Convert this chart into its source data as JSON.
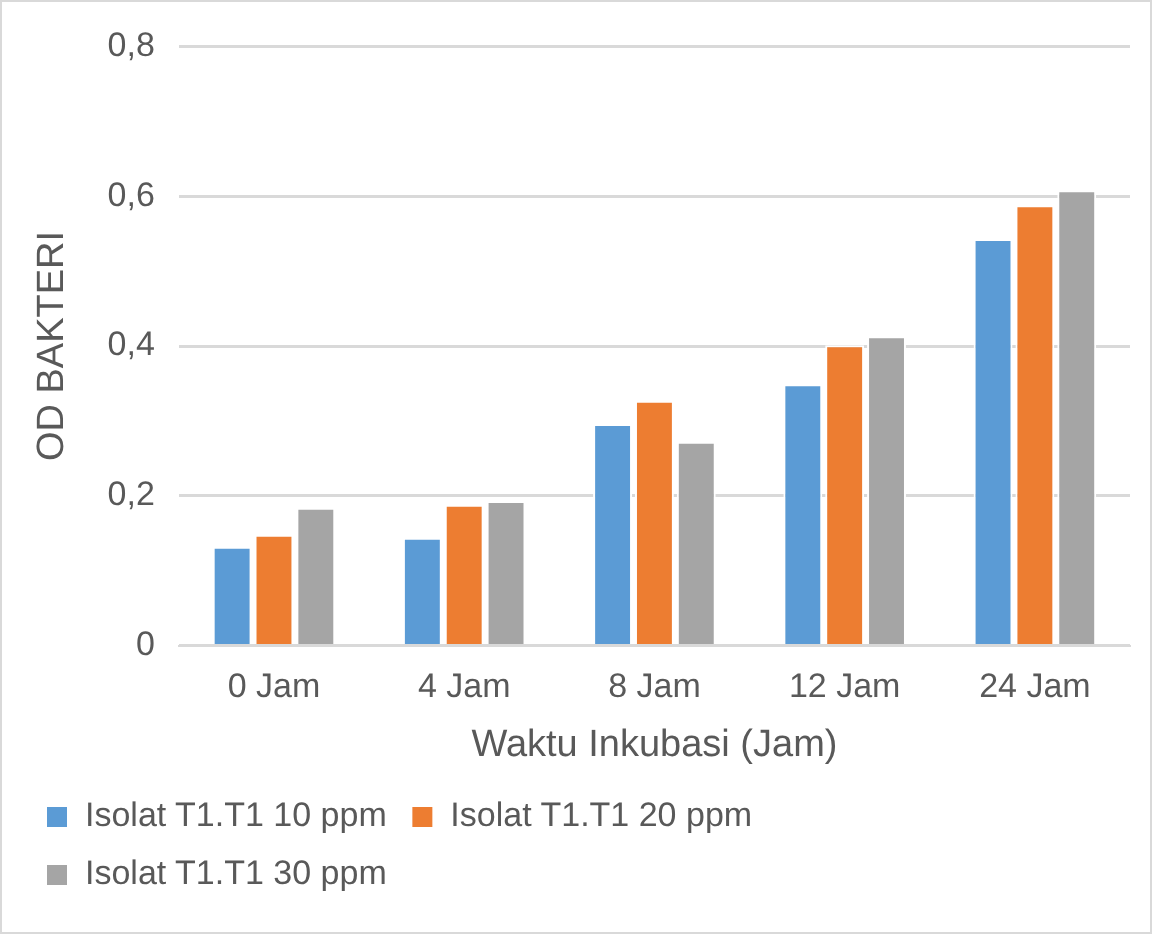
{
  "chart_data": {
    "type": "bar",
    "xlabel": "Waktu Inkubasi (Jam)",
    "ylabel": "OD BAKTERI",
    "categories": [
      "0 Jam",
      "4 Jam",
      "8 Jam",
      "12 Jam",
      "24 Jam"
    ],
    "series": [
      {
        "name": "Isolat T1.T1 10 ppm",
        "color": "#5b9bd5",
        "values": [
          0.132,
          0.144,
          0.296,
          0.349,
          0.543
        ]
      },
      {
        "name": "Isolat T1.T1 20 ppm",
        "color": "#ed7d31",
        "values": [
          0.148,
          0.188,
          0.327,
          0.401,
          0.588
        ]
      },
      {
        "name": "Isolat T1.T1 30 ppm",
        "color": "#a5a5a5",
        "values": [
          0.184,
          0.193,
          0.272,
          0.413,
          0.608
        ]
      }
    ],
    "ylim": [
      0,
      0.8
    ],
    "yticks": [
      0,
      {
        "value": 0.2,
        "label": "0,2"
      },
      {
        "value": 0.4,
        "label": "0,4"
      },
      {
        "value": 0.6,
        "label": "0,6"
      },
      {
        "value": 0.8,
        "label": "0,8"
      }
    ],
    "grid": "y",
    "legend": "bottom"
  }
}
